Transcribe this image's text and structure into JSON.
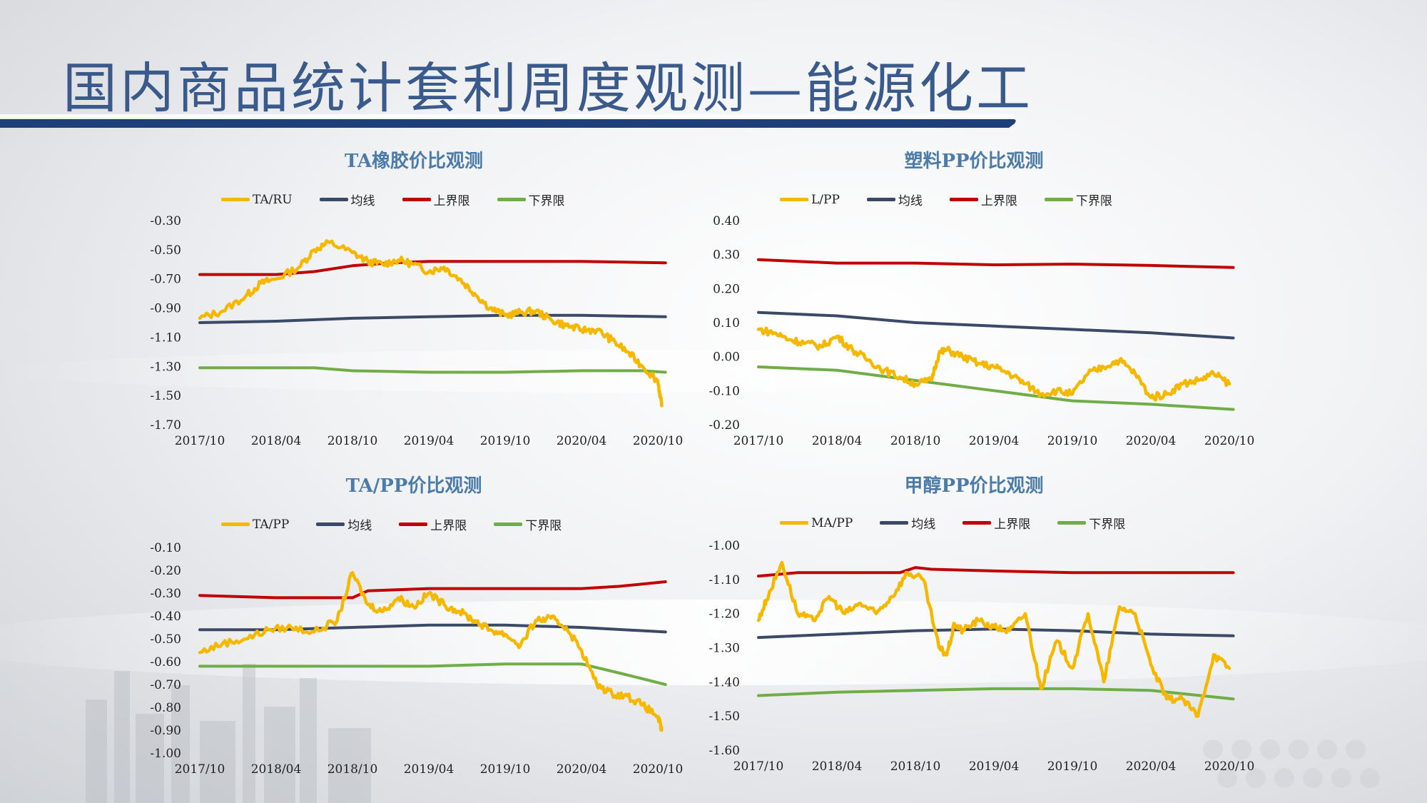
{
  "page": {
    "title": "国内商品统计套利周度观测—能源化工"
  },
  "colors": {
    "main": "#f5b800",
    "mean": "#3a4a66",
    "upper": "#c00000",
    "lower": "#70ad47",
    "title_blue": "#3b5a8c",
    "bar_navy": "#1f3f7a"
  },
  "chart_data": [
    {
      "type": "line",
      "title": "TA橡胶价比观测",
      "xticks": [
        "2017/10",
        "2018/04",
        "2018/10",
        "2019/04",
        "2019/10",
        "2020/04",
        "2020/10"
      ],
      "yticks": [
        "-0.30",
        "-0.50",
        "-0.70",
        "-0.90",
        "-1.10",
        "-1.30",
        "-1.50",
        "-1.70"
      ],
      "ylim": [
        -1.7,
        -0.3
      ],
      "legend_position": "top",
      "series": [
        {
          "name": "TA/RU",
          "role": "main",
          "x": [
            0,
            0.3,
            0.6,
            0.8,
            1,
            1.3,
            1.5,
            1.7,
            2,
            2.2,
            2.4,
            2.6,
            2.8,
            3,
            3.2,
            3.4,
            3.6,
            3.8,
            4,
            4.2,
            4.4,
            4.6,
            4.8,
            5,
            5.2,
            5.4,
            5.6,
            5.8,
            6,
            6.05
          ],
          "values": [
            -0.97,
            -0.92,
            -0.82,
            -0.73,
            -0.7,
            -0.62,
            -0.5,
            -0.45,
            -0.52,
            -0.58,
            -0.6,
            -0.57,
            -0.6,
            -0.65,
            -0.62,
            -0.7,
            -0.8,
            -0.9,
            -0.95,
            -0.93,
            -0.92,
            -0.98,
            -1.02,
            -1.05,
            -1.05,
            -1.12,
            -1.2,
            -1.3,
            -1.4,
            -1.57
          ]
        },
        {
          "name": "均线",
          "role": "mean",
          "x": [
            0,
            1,
            2,
            3,
            4,
            5,
            6.1
          ],
          "values": [
            -1.0,
            -0.99,
            -0.97,
            -0.96,
            -0.95,
            -0.95,
            -0.96
          ]
        },
        {
          "name": "上界限",
          "role": "upper",
          "x": [
            0,
            1,
            1.5,
            2,
            2.5,
            3,
            4,
            5,
            6.1
          ],
          "values": [
            -0.67,
            -0.67,
            -0.65,
            -0.61,
            -0.59,
            -0.58,
            -0.58,
            -0.58,
            -0.59
          ]
        },
        {
          "name": "下界限",
          "role": "lower",
          "x": [
            0,
            1,
            1.5,
            2,
            3,
            4,
            5,
            5.8,
            6.1
          ],
          "values": [
            -1.31,
            -1.31,
            -1.31,
            -1.33,
            -1.34,
            -1.34,
            -1.33,
            -1.33,
            -1.34
          ]
        }
      ]
    },
    {
      "type": "line",
      "title": "塑料PP价比观测",
      "xticks": [
        "2017/10",
        "2018/04",
        "2018/10",
        "2019/04",
        "2019/10",
        "2020/04",
        "2020/10"
      ],
      "yticks": [
        "0.40",
        "0.30",
        "0.20",
        "0.10",
        "0.00",
        "-0.10",
        "-0.20"
      ],
      "ylim": [
        -0.2,
        0.4
      ],
      "legend_position": "top",
      "series": [
        {
          "name": "L/PP",
          "role": "main",
          "x": [
            0,
            0.2,
            0.4,
            0.6,
            0.8,
            1,
            1.2,
            1.4,
            1.6,
            1.8,
            2,
            2.2,
            2.3,
            2.4,
            2.6,
            2.8,
            3,
            3.2,
            3.4,
            3.6,
            3.8,
            4,
            4.2,
            4.4,
            4.6,
            4.8,
            5,
            5.2,
            5.4,
            5.6,
            5.8,
            6
          ],
          "values": [
            0.08,
            0.07,
            0.05,
            0.04,
            0.03,
            0.06,
            0.02,
            -0.01,
            -0.04,
            -0.06,
            -0.08,
            -0.07,
            0.01,
            0.02,
            0.0,
            -0.02,
            -0.03,
            -0.05,
            -0.08,
            -0.11,
            -0.1,
            -0.11,
            -0.05,
            -0.03,
            -0.01,
            -0.05,
            -0.12,
            -0.11,
            -0.08,
            -0.07,
            -0.05,
            -0.08
          ]
        },
        {
          "name": "均线",
          "role": "mean",
          "x": [
            0,
            1,
            2,
            3,
            4,
            5,
            6.05
          ],
          "values": [
            0.13,
            0.12,
            0.1,
            0.09,
            0.08,
            0.07,
            0.055
          ]
        },
        {
          "name": "上界限",
          "role": "upper",
          "x": [
            0,
            1,
            2,
            3,
            4,
            5,
            6.05
          ],
          "values": [
            0.285,
            0.275,
            0.275,
            0.27,
            0.272,
            0.268,
            0.262
          ]
        },
        {
          "name": "下界限",
          "role": "lower",
          "x": [
            0,
            1,
            2,
            3,
            4,
            5,
            6.05
          ],
          "values": [
            -0.03,
            -0.04,
            -0.07,
            -0.1,
            -0.13,
            -0.14,
            -0.155
          ]
        }
      ]
    },
    {
      "type": "line",
      "title": "TA/PP价比观测",
      "xticks": [
        "2017/10",
        "2018/04",
        "2018/10",
        "2019/04",
        "2019/10",
        "2020/04",
        "2020/10"
      ],
      "yticks": [
        "-0.10",
        "-0.20",
        "-0.30",
        "-0.40",
        "-0.50",
        "-0.60",
        "-0.70",
        "-0.80",
        "-0.90",
        "-1.00"
      ],
      "ylim": [
        -1.0,
        -0.1
      ],
      "legend_position": "top",
      "series": [
        {
          "name": "TA/PP",
          "role": "main",
          "x": [
            0,
            0.3,
            0.6,
            0.9,
            1.2,
            1.5,
            1.8,
            2,
            2.2,
            2.4,
            2.6,
            2.8,
            3,
            3.2,
            3.4,
            3.6,
            3.8,
            4,
            4.2,
            4.4,
            4.6,
            4.8,
            5,
            5.2,
            5.4,
            5.6,
            5.8,
            6,
            6.05
          ],
          "values": [
            -0.56,
            -0.52,
            -0.5,
            -0.46,
            -0.45,
            -0.47,
            -0.42,
            -0.21,
            -0.35,
            -0.38,
            -0.32,
            -0.36,
            -0.3,
            -0.35,
            -0.38,
            -0.42,
            -0.46,
            -0.48,
            -0.53,
            -0.42,
            -0.41,
            -0.45,
            -0.55,
            -0.7,
            -0.74,
            -0.75,
            -0.79,
            -0.84,
            -0.9
          ]
        },
        {
          "name": "均线",
          "role": "mean",
          "x": [
            0,
            1,
            2,
            3,
            4,
            5,
            6.1
          ],
          "values": [
            -0.46,
            -0.46,
            -0.45,
            -0.44,
            -0.44,
            -0.45,
            -0.47
          ]
        },
        {
          "name": "上界限",
          "role": "upper",
          "x": [
            0,
            1,
            1.5,
            2,
            2.2,
            3,
            4,
            5,
            5.5,
            6.1
          ],
          "values": [
            -0.31,
            -0.32,
            -0.32,
            -0.32,
            -0.29,
            -0.28,
            -0.28,
            -0.28,
            -0.27,
            -0.25
          ]
        },
        {
          "name": "下界限",
          "role": "lower",
          "x": [
            0,
            1,
            2,
            3,
            4,
            5,
            5.5,
            6.1
          ],
          "values": [
            -0.62,
            -0.62,
            -0.62,
            -0.62,
            -0.61,
            -0.61,
            -0.65,
            -0.7
          ]
        }
      ]
    },
    {
      "type": "line",
      "title": "甲醇PP价比观测",
      "xticks": [
        "2017/10",
        "2018/04",
        "2018/10",
        "2019/04",
        "2019/10",
        "2020/04",
        "2020/10"
      ],
      "yticks": [
        "-1.00",
        "-1.10",
        "-1.20",
        "-1.30",
        "-1.40",
        "-1.50",
        "-1.60"
      ],
      "ylim": [
        -1.6,
        -1.0
      ],
      "legend_position": "top",
      "series": [
        {
          "name": "MA/PP",
          "role": "main",
          "x": [
            0,
            0.1,
            0.3,
            0.5,
            0.7,
            0.9,
            1.1,
            1.3,
            1.5,
            1.7,
            1.9,
            2.1,
            2.3,
            2.4,
            2.5,
            2.6,
            2.8,
            3,
            3.2,
            3.4,
            3.6,
            3.8,
            4,
            4.2,
            4.4,
            4.6,
            4.8,
            5,
            5.2,
            5.4,
            5.6,
            5.8,
            6
          ],
          "values": [
            -1.22,
            -1.16,
            -1.05,
            -1.2,
            -1.22,
            -1.15,
            -1.2,
            -1.17,
            -1.2,
            -1.15,
            -1.08,
            -1.1,
            -1.3,
            -1.32,
            -1.23,
            -1.25,
            -1.22,
            -1.24,
            -1.25,
            -1.2,
            -1.42,
            -1.28,
            -1.36,
            -1.2,
            -1.4,
            -1.18,
            -1.2,
            -1.35,
            -1.45,
            -1.45,
            -1.5,
            -1.32,
            -1.36
          ]
        },
        {
          "name": "均线",
          "role": "mean",
          "x": [
            0,
            1,
            2,
            3,
            4,
            5,
            6.05
          ],
          "values": [
            -1.27,
            -1.26,
            -1.25,
            -1.245,
            -1.25,
            -1.26,
            -1.265
          ]
        },
        {
          "name": "上界限",
          "role": "upper",
          "x": [
            0,
            0.5,
            1,
            1.8,
            2,
            2.2,
            3,
            4,
            5,
            6.05
          ],
          "values": [
            -1.09,
            -1.08,
            -1.08,
            -1.08,
            -1.065,
            -1.07,
            -1.075,
            -1.08,
            -1.08,
            -1.08
          ]
        },
        {
          "name": "下界限",
          "role": "lower",
          "x": [
            0,
            1,
            2,
            3,
            4,
            5,
            6.05
          ],
          "values": [
            -1.44,
            -1.43,
            -1.425,
            -1.42,
            -1.42,
            -1.425,
            -1.45
          ]
        }
      ]
    }
  ]
}
